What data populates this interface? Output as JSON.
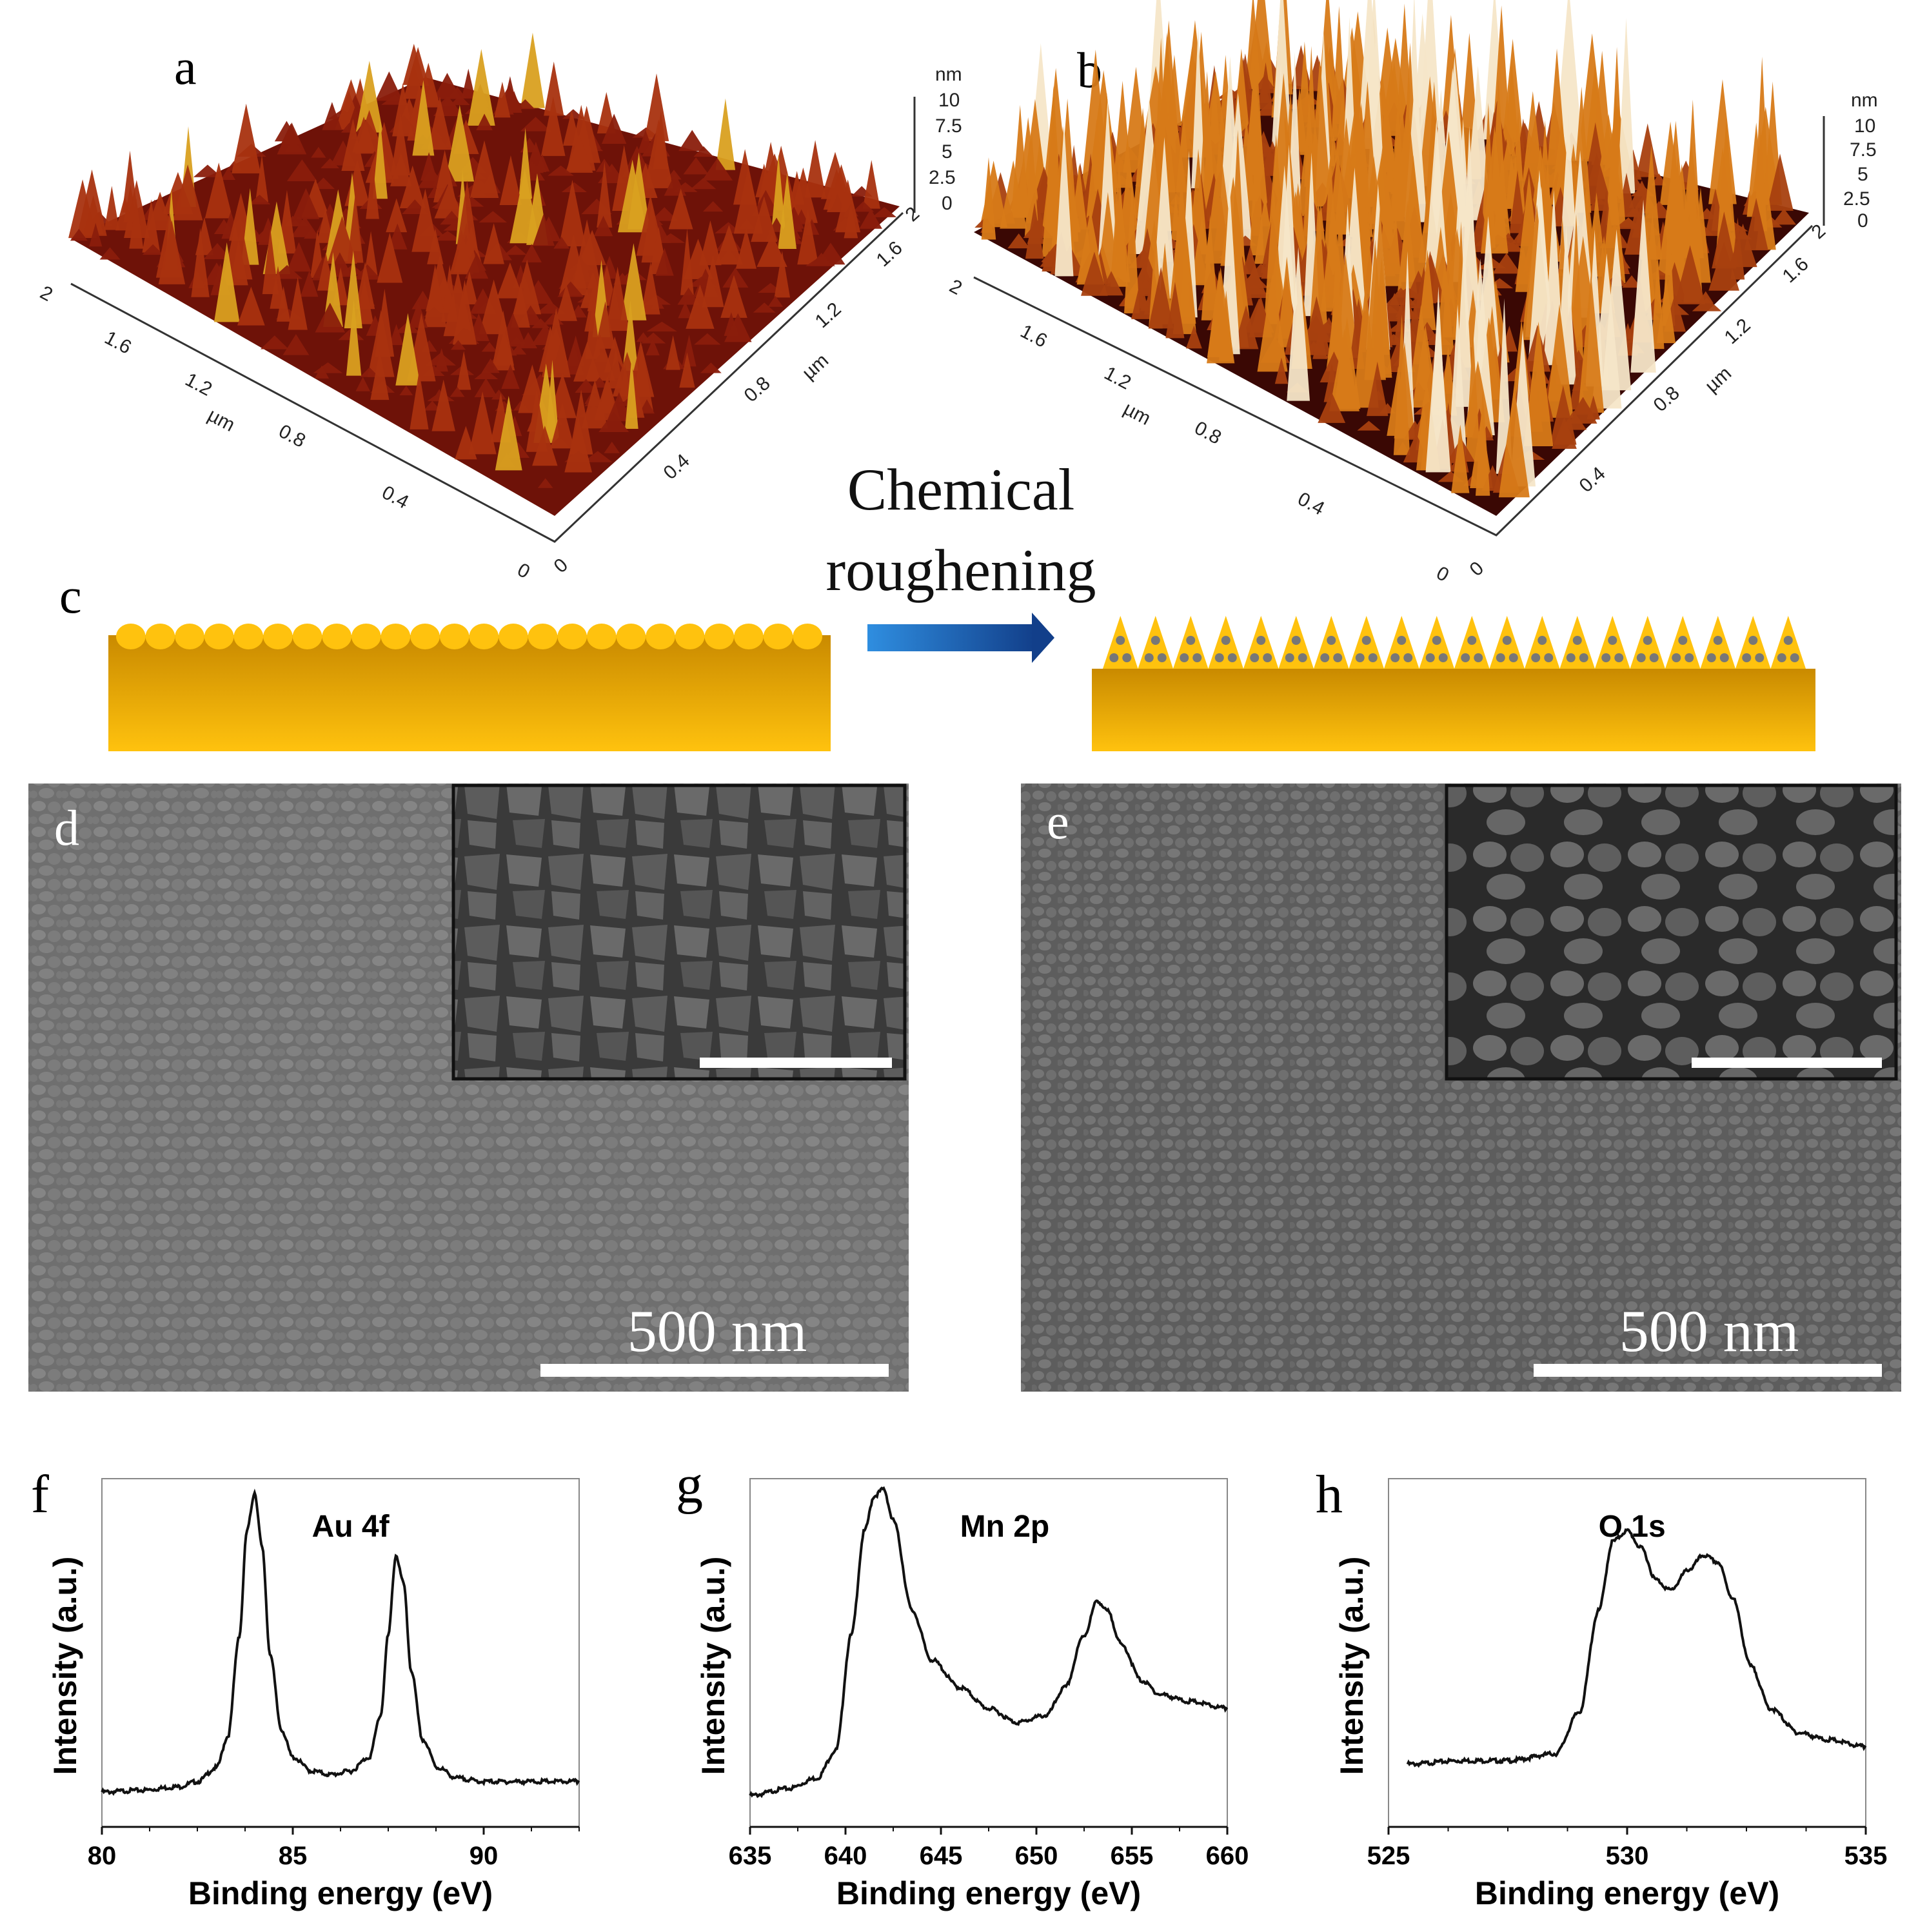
{
  "panel_labels": {
    "a": "a",
    "b": "b",
    "c": "c",
    "d": "d",
    "e": "e",
    "f": "f",
    "g": "g",
    "h": "h"
  },
  "afm": {
    "a": {
      "unit": "nm",
      "z_ticks": [
        "10",
        "7.5",
        "5",
        "2.5",
        "0"
      ],
      "axis_unit": "µm",
      "left_ticks": [
        "2",
        "1.6",
        "1.2",
        "0.8",
        "0.4",
        "0"
      ],
      "right_ticks": [
        "0",
        "0.4",
        "0.8",
        "1.2",
        "1.6",
        "2"
      ]
    },
    "b": {
      "unit": "nm",
      "z_ticks": [
        "10",
        "7.5",
        "5",
        "2.5",
        "0"
      ],
      "axis_unit": "µm",
      "left_ticks": [
        "2",
        "1.6",
        "1.2",
        "0.8",
        "0.4",
        "0"
      ],
      "right_ticks": [
        "0",
        "0.4",
        "0.8",
        "1.2",
        "1.6",
        "2"
      ]
    }
  },
  "process": {
    "line1": "Chemical",
    "line2": "roughening"
  },
  "sem": {
    "d": {
      "scale_text": "500 nm"
    },
    "e": {
      "scale_text": "500 nm"
    }
  },
  "colors": {
    "afm_dark": "#5a0a05",
    "afm_mid": "#8a1e0c",
    "afm_bright": "#e0a030",
    "gold_top": "#c98a00",
    "gold_bottom": "#ffc20e",
    "arrow": "#1e6bbf",
    "dot": "#777777"
  },
  "chart_data": [
    {
      "panel": "f",
      "type": "line",
      "title": "Au 4f",
      "xlabel": "Binding energy (eV)",
      "ylabel": "Intensity (a.u.)",
      "xlim": [
        80,
        92.5
      ],
      "ylim": [
        0,
        1
      ],
      "xticks": [
        "80",
        "85",
        "90"
      ],
      "x": [
        80,
        81,
        82,
        82.5,
        83,
        83.3,
        83.6,
        83.8,
        84.0,
        84.2,
        84.4,
        84.7,
        85.0,
        85.5,
        86.0,
        86.5,
        87.0,
        87.3,
        87.5,
        87.7,
        87.9,
        88.1,
        88.4,
        88.8,
        89.3,
        90,
        91,
        92.5
      ],
      "y": [
        0.1,
        0.105,
        0.115,
        0.13,
        0.17,
        0.26,
        0.55,
        0.85,
        0.96,
        0.8,
        0.5,
        0.28,
        0.2,
        0.16,
        0.15,
        0.16,
        0.2,
        0.32,
        0.55,
        0.78,
        0.7,
        0.45,
        0.25,
        0.17,
        0.14,
        0.13,
        0.13,
        0.13
      ]
    },
    {
      "panel": "g",
      "type": "line",
      "title": "Mn 2p",
      "xlabel": "Binding energy (eV)",
      "ylabel": "Intensity (a.u.)",
      "xlim": [
        635,
        660
      ],
      "ylim": [
        0,
        1
      ],
      "xticks": [
        "635",
        "640",
        "645",
        "650",
        "655",
        "660"
      ],
      "x": [
        635,
        637,
        638.5,
        639.5,
        640.3,
        641,
        641.5,
        642,
        642.5,
        643.5,
        644.5,
        646,
        647.5,
        649,
        650.5,
        651.5,
        652.5,
        653.2,
        653.7,
        654.5,
        655.5,
        656.5,
        658,
        660
      ],
      "y": [
        0.09,
        0.11,
        0.14,
        0.22,
        0.55,
        0.85,
        0.95,
        0.97,
        0.88,
        0.62,
        0.48,
        0.4,
        0.34,
        0.3,
        0.32,
        0.4,
        0.55,
        0.65,
        0.62,
        0.52,
        0.42,
        0.38,
        0.36,
        0.34
      ]
    },
    {
      "panel": "h",
      "type": "line",
      "title": "O 1s",
      "xlabel": "Binding energy (eV)",
      "ylabel": "Intensity (a.u.)",
      "xlim": [
        525,
        535
      ],
      "ylim": [
        0,
        1
      ],
      "xticks": [
        "525",
        "530",
        "535"
      ],
      "x": [
        525.4,
        526.5,
        527.5,
        528.5,
        529.0,
        529.4,
        529.7,
        530.0,
        530.3,
        530.6,
        530.9,
        531.3,
        531.6,
        531.9,
        532.2,
        532.6,
        533.0,
        533.6,
        534.2,
        535.0
      ],
      "y": [
        0.18,
        0.19,
        0.19,
        0.21,
        0.33,
        0.62,
        0.82,
        0.85,
        0.8,
        0.71,
        0.68,
        0.74,
        0.78,
        0.76,
        0.66,
        0.46,
        0.34,
        0.27,
        0.25,
        0.23
      ]
    }
  ]
}
